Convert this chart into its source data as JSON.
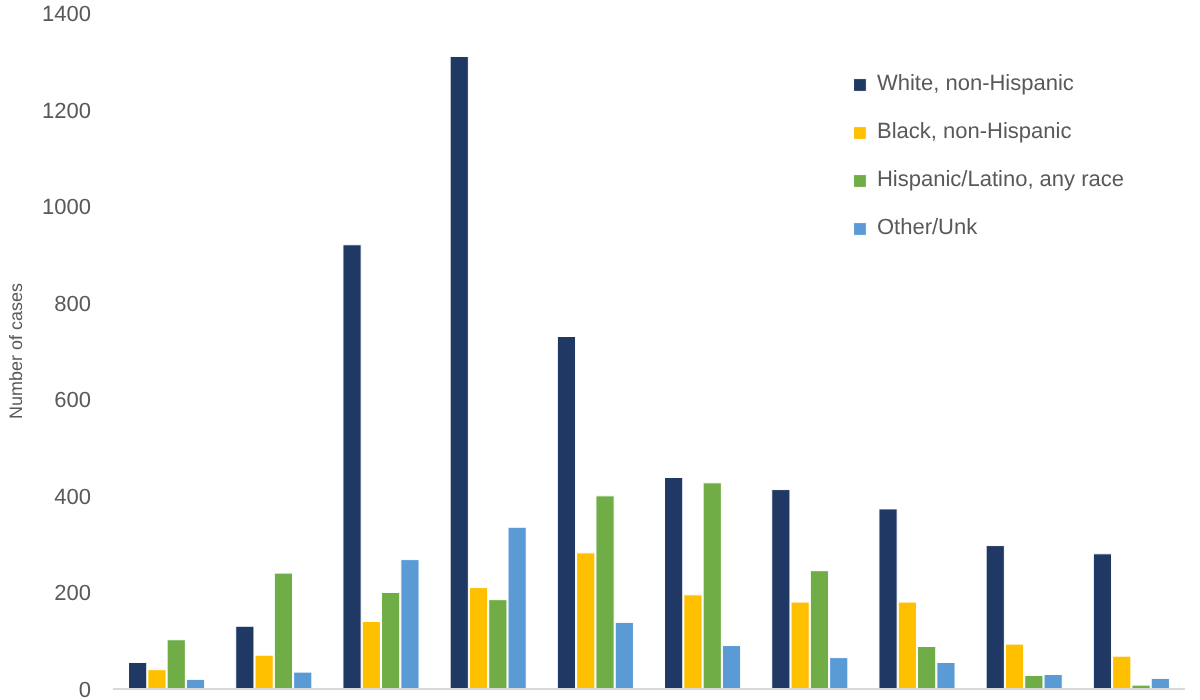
{
  "chart_data": {
    "type": "bar",
    "ylabel": "Number of cases",
    "categories": [
      null,
      null,
      null,
      null,
      null,
      null,
      null,
      null,
      null,
      null
    ],
    "series": [
      {
        "name": "White, non-Hispanic",
        "color": "#203864",
        "values": [
          55,
          130,
          920,
          1310,
          730,
          438,
          413,
          373,
          297,
          280
        ]
      },
      {
        "name": "Black, non-Hispanic",
        "color": "#ffc000",
        "values": [
          40,
          70,
          140,
          210,
          282,
          195,
          180,
          180,
          93,
          68
        ]
      },
      {
        "name": "Hispanic/Latino, any race",
        "color": "#70ad47",
        "values": [
          102,
          240,
          200,
          185,
          400,
          427,
          245,
          88,
          28,
          8
        ]
      },
      {
        "name": "Other/Unk",
        "color": "#5b9bd5",
        "values": [
          20,
          35,
          268,
          335,
          138,
          90,
          65,
          55,
          30,
          22
        ]
      }
    ],
    "ylim": [
      0,
      1400
    ],
    "yticks": [
      0,
      200,
      400,
      600,
      800,
      1000,
      1200,
      1400
    ],
    "grid": false,
    "legend": "top right",
    "tick_labels": "y"
  }
}
